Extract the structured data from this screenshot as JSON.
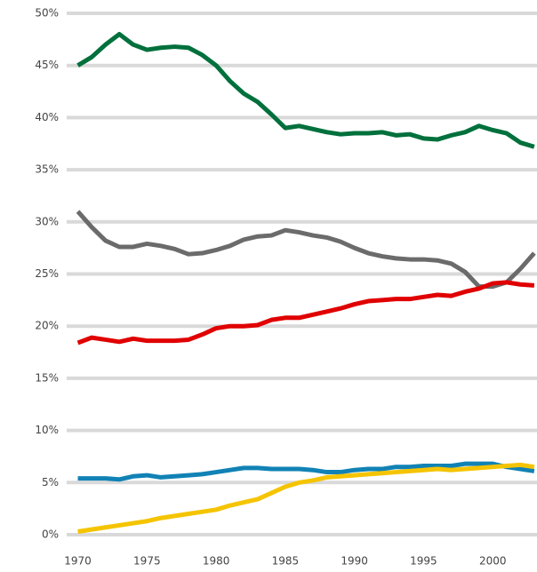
{
  "chart_data": {
    "type": "line",
    "x": [
      1970,
      1971,
      1972,
      1973,
      1974,
      1975,
      1976,
      1977,
      1978,
      1979,
      1980,
      1981,
      1982,
      1983,
      1984,
      1985,
      1986,
      1987,
      1988,
      1989,
      1990,
      1991,
      1992,
      1993,
      1994,
      1995,
      1996,
      1997,
      1998,
      1999,
      2000,
      2001,
      2002,
      2003
    ],
    "series": [
      {
        "color": "#00703c",
        "values": [
          45,
          45.8,
          47,
          48,
          47,
          46.5,
          46.7,
          46.8,
          46.7,
          46,
          45,
          43.5,
          42.3,
          41.5,
          40.3,
          39,
          39.2,
          38.9,
          38.6,
          38.4,
          38.5,
          38.5,
          38.6,
          38.3,
          38.4,
          38,
          37.9,
          38.3,
          38.6,
          39.2,
          38.8,
          38.5,
          37.6,
          37.2
        ]
      },
      {
        "color": "#6b6b6b",
        "values": [
          31,
          29.5,
          28.2,
          27.6,
          27.6,
          27.9,
          27.7,
          27.4,
          26.9,
          27,
          27.3,
          27.7,
          28.3,
          28.6,
          28.7,
          29.2,
          29,
          28.7,
          28.5,
          28.1,
          27.5,
          27,
          26.7,
          26.5,
          26.4,
          26.4,
          26.3,
          26,
          25.2,
          23.8,
          23.8,
          24.2,
          25.5,
          27
        ]
      },
      {
        "color": "#e00000",
        "values": [
          18.4,
          18.9,
          18.7,
          18.5,
          18.8,
          18.6,
          18.6,
          18.6,
          18.7,
          19.2,
          19.8,
          20,
          20,
          20.1,
          20.6,
          20.8,
          20.8,
          21.1,
          21.4,
          21.7,
          22.1,
          22.4,
          22.5,
          22.6,
          22.6,
          22.8,
          23,
          22.9,
          23.3,
          23.6,
          24.1,
          24.2,
          24,
          23.9
        ]
      },
      {
        "color": "#1182b5",
        "values": [
          5.4,
          5.4,
          5.4,
          5.3,
          5.6,
          5.7,
          5.5,
          5.6,
          5.7,
          5.8,
          6,
          6.2,
          6.4,
          6.4,
          6.3,
          6.3,
          6.3,
          6.2,
          6,
          6,
          6.2,
          6.3,
          6.3,
          6.5,
          6.5,
          6.6,
          6.6,
          6.6,
          6.8,
          6.8,
          6.8,
          6.5,
          6.3,
          6.1
        ]
      },
      {
        "color": "#f5c400",
        "values": [
          0.3,
          0.5,
          0.7,
          0.9,
          1.1,
          1.3,
          1.6,
          1.8,
          2,
          2.2,
          2.4,
          2.8,
          3.1,
          3.4,
          4,
          4.6,
          5,
          5.2,
          5.5,
          5.6,
          5.7,
          5.8,
          5.9,
          6,
          6.1,
          6.2,
          6.3,
          6.2,
          6.3,
          6.4,
          6.5,
          6.6,
          6.7,
          6.5
        ]
      }
    ],
    "xlim": [
      1969,
      2003.2
    ],
    "xticks": [
      1970,
      1975,
      1980,
      1985,
      1990,
      1995,
      2000
    ],
    "ylim": [
      0,
      50
    ],
    "yticks": [
      {
        "value": 0,
        "label": "0%"
      },
      {
        "value": 5,
        "label": "5%"
      },
      {
        "value": 10,
        "label": "10%"
      },
      {
        "value": 15,
        "label": "15%"
      },
      {
        "value": 20,
        "label": "20%"
      },
      {
        "value": 25,
        "label": "25%"
      },
      {
        "value": 30,
        "label": "30%"
      },
      {
        "value": 35,
        "label": "35%"
      },
      {
        "value": 40,
        "label": "40%"
      },
      {
        "value": 45,
        "label": "45%"
      },
      {
        "value": 50,
        "label": "50%"
      }
    ],
    "grid": true
  }
}
